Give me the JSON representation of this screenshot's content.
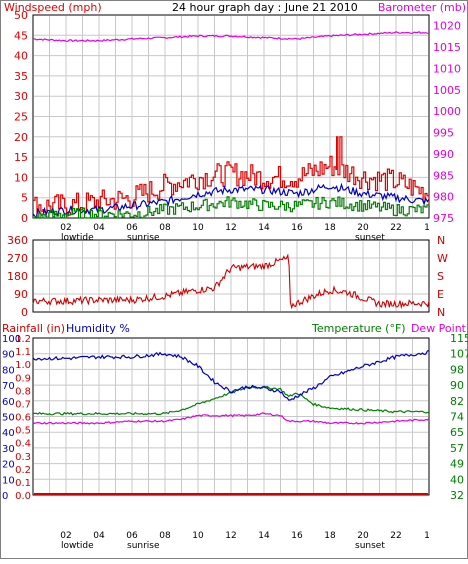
{
  "title": "24 hour graph day : June 21 2010",
  "colors": {
    "wind": "#e00000",
    "gust": "#e00000",
    "avg": "#0000c0",
    "min": "#008000",
    "baro": "#e000e0",
    "dir": "#d00000",
    "temp": "#008000",
    "humidity": "#0000c0",
    "dewpoint": "#e000e0",
    "rain": "#d00000",
    "grid": "#c8c8c8"
  },
  "x_ticks": [
    "02",
    "04",
    "06",
    "08",
    "10",
    "12",
    "14",
    "16",
    "18",
    "20",
    "22",
    "1"
  ],
  "x_annotations": {
    "lowtide": "lowtide",
    "sunrise": "sunrise",
    "sunset": "sunset"
  },
  "panel1": {
    "left_label": "Windspeed (mph)",
    "right_label": "Barometer (mb)",
    "left_ticks": [
      "0",
      "5",
      "10",
      "15",
      "20",
      "25",
      "30",
      "35",
      "40",
      "45",
      "50"
    ],
    "right_ticks": [
      "975",
      "980",
      "985",
      "990",
      "995",
      "1000",
      "1005",
      "1010",
      "1015",
      "1020"
    ]
  },
  "panel2": {
    "left_ticks": [
      "0",
      "90",
      "180",
      "270",
      "360"
    ],
    "right_ticks": [
      "N",
      "E",
      "S",
      "W",
      "N"
    ]
  },
  "panel3": {
    "rain_label": "Rainfall (in)",
    "humidity_label": "Humidity %",
    "temp_label": "Temperature (°F)",
    "dew_label": "Dew Point",
    "rain_ticks": [
      "0.0",
      "0.1",
      "0.2",
      "0.3",
      "0.4",
      "0.5",
      "0.6",
      "0.7",
      "0.8",
      "0.9",
      "1.0",
      "1.1",
      "1.2"
    ],
    "hum_ticks": [
      "0",
      "10",
      "20",
      "30",
      "40",
      "50",
      "60",
      "70",
      "80",
      "90",
      "100"
    ],
    "temp_ticks": [
      "32",
      "40",
      "49",
      "57",
      "65",
      "74",
      "82",
      "90",
      "98",
      "107",
      "115"
    ]
  },
  "chart_data": [
    {
      "type": "line",
      "title": "24 hour graph day : June 21 2010",
      "ylabel": "Windspeed (mph)",
      "y2label": "Barometer (mb)",
      "ylim": [
        0,
        50
      ],
      "y2lim": [
        975,
        1022.5
      ],
      "x": [
        0,
        2,
        4,
        6,
        8,
        10,
        12,
        14,
        16,
        18,
        20,
        22,
        24
      ],
      "series": [
        {
          "name": "Windspeed (mph)",
          "values": [
            3,
            3,
            4,
            5,
            8,
            10,
            11,
            10,
            10,
            13,
            10,
            9,
            6
          ]
        },
        {
          "name": "average",
          "values": [
            1,
            2,
            2,
            3,
            4,
            6,
            7,
            7,
            6,
            8,
            6,
            5,
            4
          ]
        },
        {
          "name": "min",
          "values": [
            0,
            1,
            1,
            1,
            2,
            3,
            4,
            3,
            3,
            4,
            3,
            2,
            2
          ]
        },
        {
          "name": "Barometer (mb)",
          "values": [
            1016.9,
            1016.5,
            1016.5,
            1016.9,
            1017.2,
            1017.6,
            1017.6,
            1017.2,
            1016.9,
            1017.6,
            1018,
            1018.4,
            1018.4
          ]
        }
      ]
    },
    {
      "type": "scatter",
      "ylim": [
        0,
        360
      ],
      "x": [
        0,
        2,
        4,
        6,
        8,
        10,
        11,
        12,
        14,
        15.5,
        15.6,
        17,
        18,
        19,
        21,
        24
      ],
      "values": [
        55,
        55,
        60,
        60,
        80,
        110,
        120,
        220,
        230,
        270,
        30,
        80,
        110,
        100,
        40,
        45
      ]
    },
    {
      "type": "line",
      "ylim": [
        0,
        100
      ],
      "y2lim": [
        32,
        115
      ],
      "x": [
        0,
        2,
        4,
        6,
        8,
        9,
        10,
        11,
        12,
        13,
        14,
        15,
        15.5,
        16,
        17,
        18,
        20,
        22,
        24
      ],
      "series": [
        {
          "name": "Humidity %",
          "values": [
            87,
            87,
            88,
            88,
            90,
            88,
            82,
            72,
            66,
            69,
            68,
            66,
            60,
            63,
            68,
            75,
            82,
            88,
            91
          ]
        },
        {
          "name": "Temperature (°F)",
          "values": [
            75,
            75,
            75,
            75,
            75,
            77,
            80,
            83,
            86,
            89,
            89,
            88,
            84,
            86,
            80,
            78,
            77,
            76,
            76
          ]
        },
        {
          "name": "Dew Point",
          "values": [
            70,
            70,
            70,
            71,
            71,
            72,
            74,
            74,
            74,
            74,
            75,
            74,
            71,
            71,
            71,
            70,
            70,
            71,
            72
          ]
        },
        {
          "name": "Rainfall (in)",
          "values": [
            0,
            0,
            0,
            0,
            0,
            0,
            0,
            0,
            0,
            0,
            0,
            0,
            0,
            0,
            0,
            0,
            0,
            0,
            0
          ]
        }
      ]
    }
  ]
}
